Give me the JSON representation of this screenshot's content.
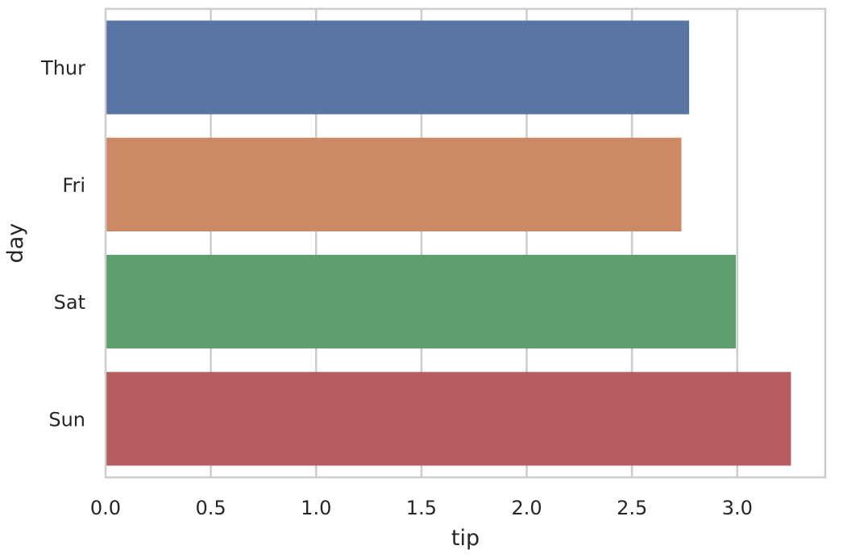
{
  "chart_data": {
    "type": "bar",
    "orientation": "horizontal",
    "categories": [
      "Thur",
      "Fri",
      "Sat",
      "Sun"
    ],
    "values": [
      2.771452,
      2.734737,
      2.993103,
      3.255132
    ],
    "colors": [
      "#5875a4",
      "#cc8963",
      "#5f9e6e",
      "#b55d60"
    ],
    "title": "",
    "xlabel": "tip",
    "ylabel": "day",
    "xlim": [
      0,
      3.418
    ],
    "xticks": [
      0.0,
      0.5,
      1.0,
      1.5,
      2.0,
      2.5,
      3.0
    ],
    "xtick_labels": [
      "0.0",
      "0.5",
      "1.0",
      "1.5",
      "2.0",
      "2.5",
      "3.0"
    ],
    "grid": true,
    "legend": "none"
  }
}
